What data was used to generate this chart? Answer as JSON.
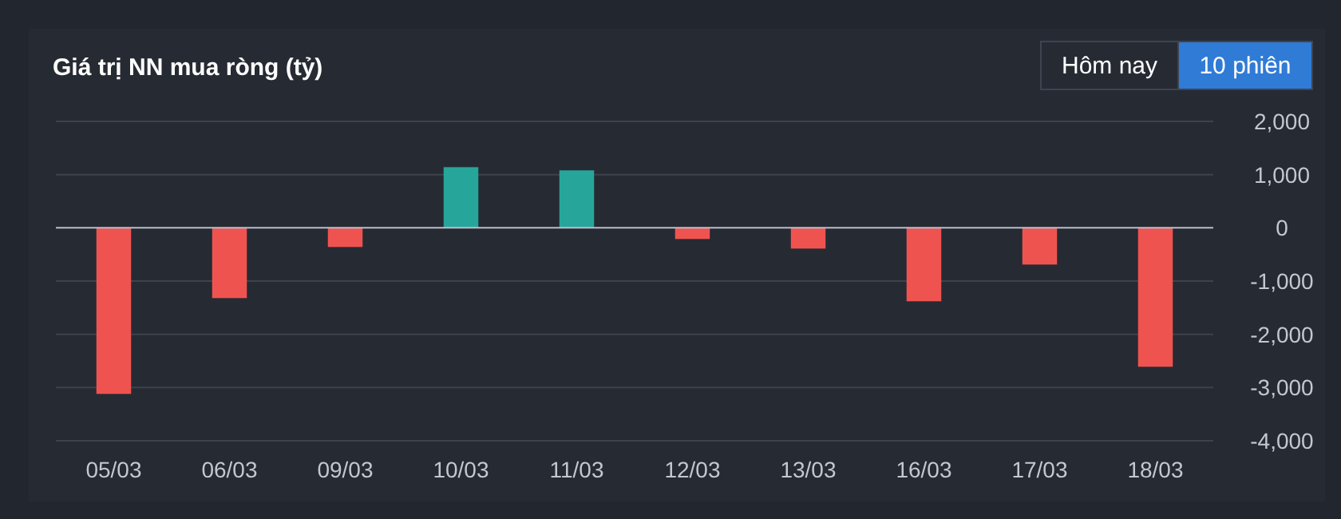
{
  "chart_data": {
    "type": "bar",
    "title": "Giá trị NN mua ròng (tỷ)",
    "categories": [
      "05/03",
      "06/03",
      "09/03",
      "10/03",
      "11/03",
      "12/03",
      "13/03",
      "16/03",
      "17/03",
      "18/03"
    ],
    "values": [
      -3120,
      -1320,
      -360,
      1140,
      1080,
      -210,
      -390,
      -1380,
      -690,
      -2610
    ],
    "colors": [
      "#ef5350",
      "#ef5350",
      "#ef5350",
      "#26a69a",
      "#26a69a",
      "#ef5350",
      "#ef5350",
      "#ef5350",
      "#ef5350",
      "#ef5350"
    ],
    "ylim": [
      -4000,
      2000
    ],
    "yticks": [
      {
        "value": -4000,
        "label": "-4,000"
      },
      {
        "value": -3000,
        "label": "-3,000"
      },
      {
        "value": -2000,
        "label": "-2,000"
      },
      {
        "value": -1000,
        "label": "-1,000"
      },
      0,
      {
        "value": 1000,
        "label": "1,000"
      },
      {
        "value": 2000,
        "label": "2,000"
      }
    ],
    "grid": "y",
    "annotations": [
      "Hôm nay",
      "10 phiên"
    ]
  }
}
